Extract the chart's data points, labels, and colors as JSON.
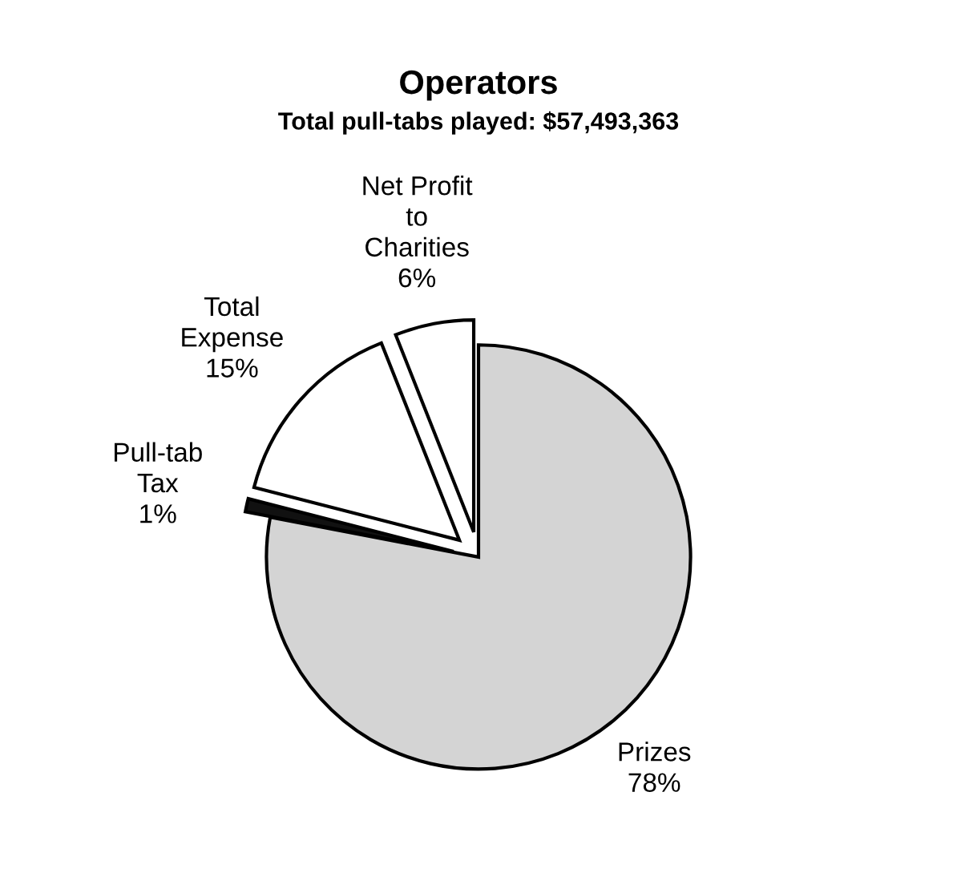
{
  "chart_data": {
    "type": "pie",
    "title": "Operators",
    "subtitle": "Total pull-tabs played: $57,493,363",
    "categories": [
      "Prizes",
      "Pull-tab\nTax",
      "Total\nExpense",
      "Net Profit\nto\nCharities"
    ],
    "values": [
      78,
      1,
      15,
      6
    ],
    "colors": [
      "#d4d4d4",
      "#111111",
      "#ffffff",
      "#ffffff"
    ],
    "value_labels": [
      "78%",
      "1%",
      "15%",
      "6%"
    ]
  }
}
